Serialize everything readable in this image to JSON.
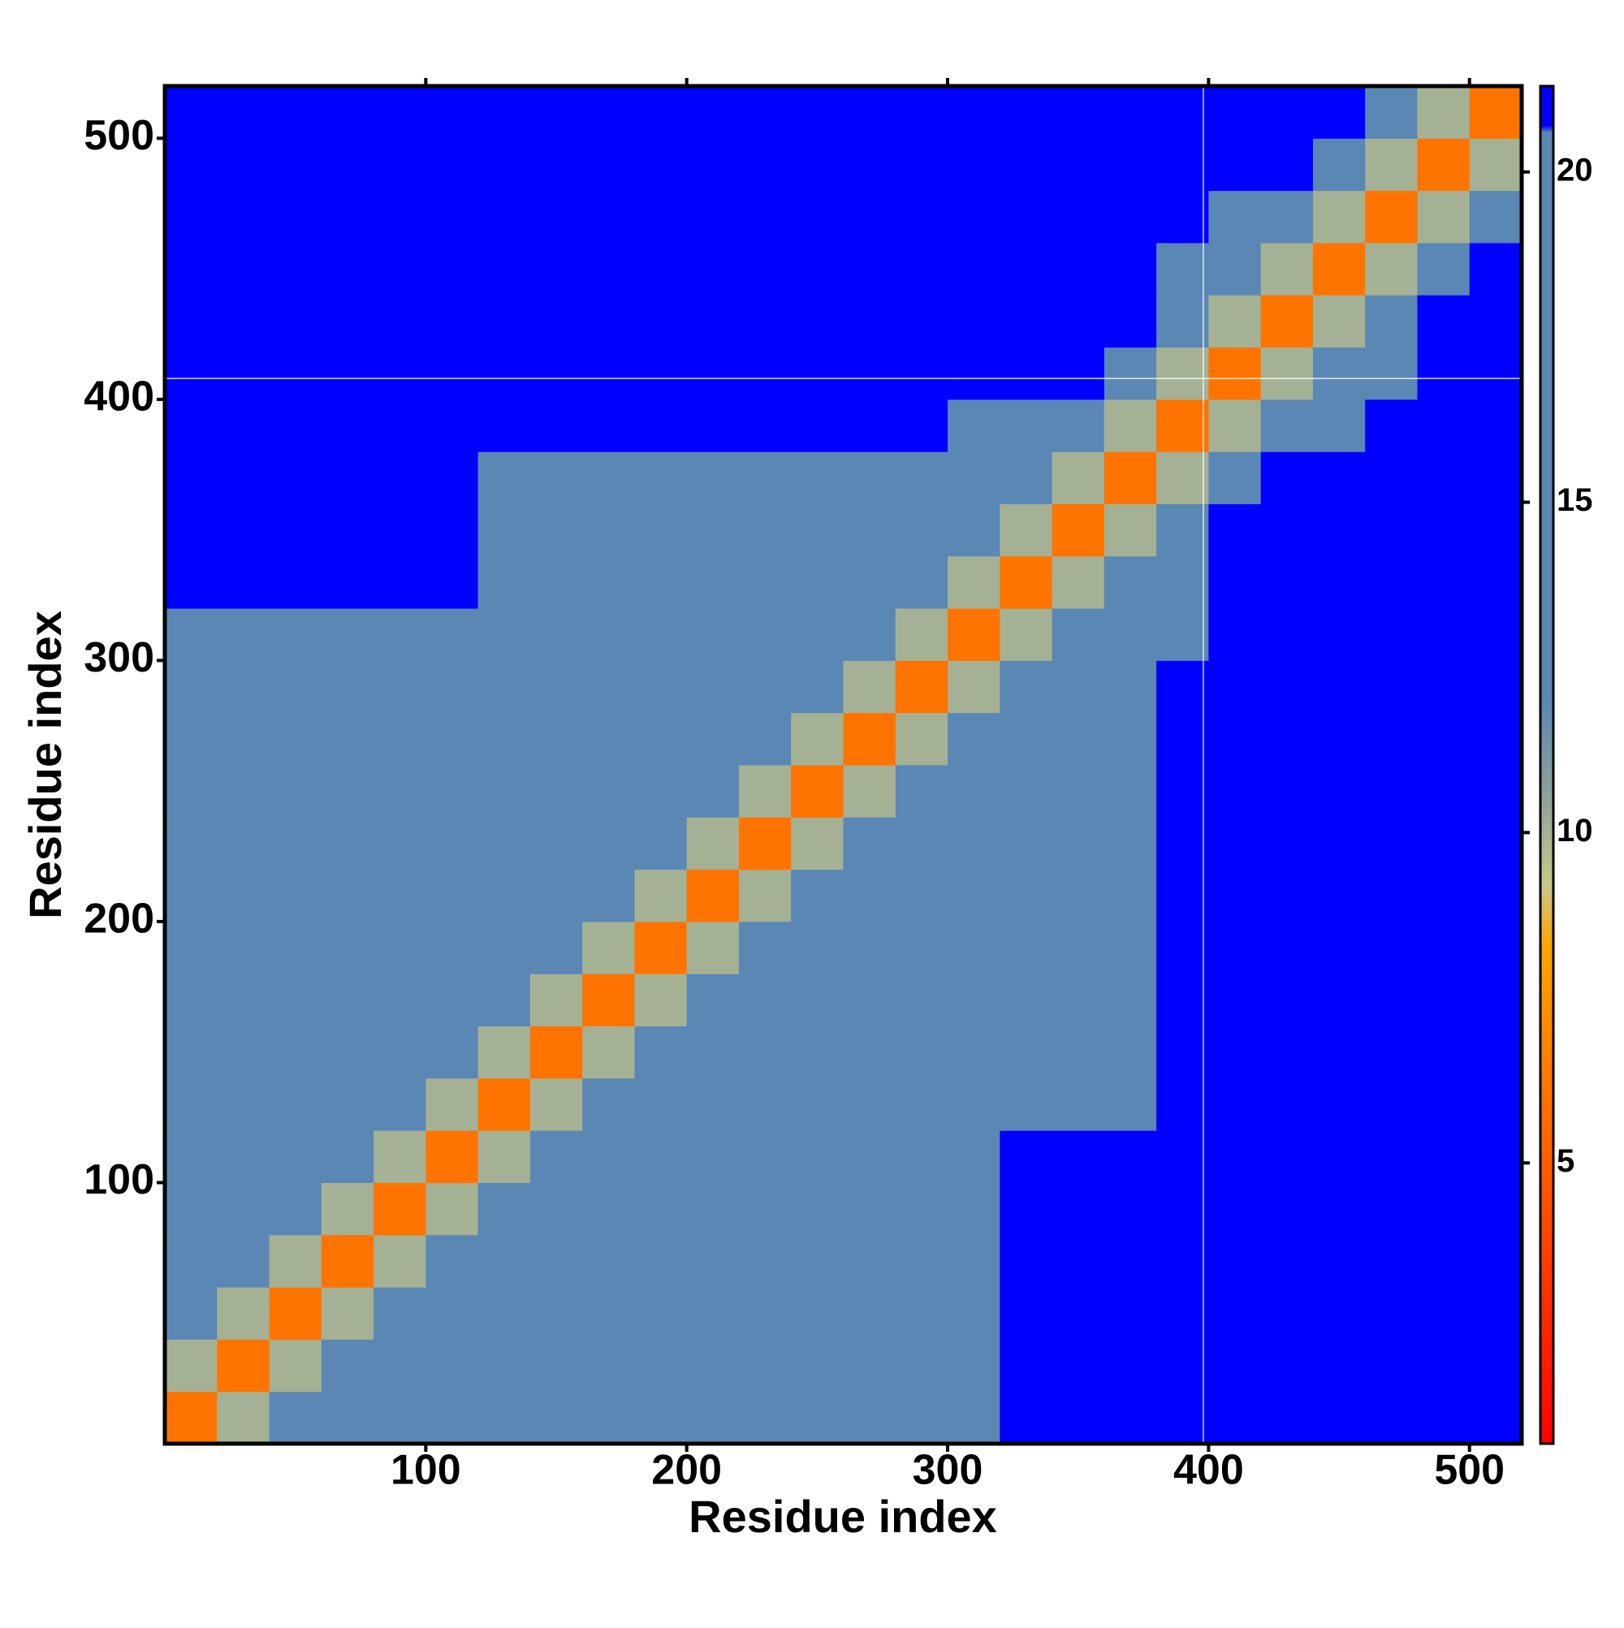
{
  "chart_data": {
    "type": "heatmap",
    "xlabel": "Residue index",
    "ylabel": "Residue index",
    "x_bins": [
      0,
      20,
      40,
      60,
      80,
      100,
      120,
      140,
      160,
      180,
      200,
      220,
      240,
      260,
      280,
      300,
      320,
      340,
      360,
      380,
      400,
      420,
      440,
      460,
      480,
      500,
      520
    ],
    "y_bins": [
      0,
      20,
      40,
      60,
      80,
      100,
      120,
      140,
      160,
      180,
      200,
      220,
      240,
      260,
      280,
      300,
      320,
      340,
      360,
      380,
      400,
      420,
      440,
      460,
      480,
      500,
      520
    ],
    "z": [
      [
        6,
        10,
        14,
        14,
        17,
        17,
        17,
        17,
        17,
        17,
        17,
        17,
        17,
        17,
        17,
        17,
        21,
        21,
        21,
        21,
        21,
        21,
        21,
        21,
        21,
        21
      ],
      [
        10,
        6,
        10,
        14,
        14,
        17,
        17,
        17,
        17,
        17,
        17,
        17,
        17,
        17,
        17,
        17,
        21,
        21,
        21,
        21,
        21,
        21,
        21,
        21,
        21,
        21
      ],
      [
        14,
        10,
        6,
        10,
        14,
        14,
        17,
        17,
        17,
        17,
        17,
        17,
        17,
        17,
        17,
        17,
        21,
        21,
        21,
        21,
        21,
        21,
        21,
        21,
        21,
        21
      ],
      [
        14,
        14,
        10,
        6,
        10,
        14,
        14,
        17,
        17,
        17,
        17,
        17,
        17,
        17,
        17,
        17,
        21,
        21,
        21,
        21,
        21,
        21,
        21,
        21,
        21,
        21
      ],
      [
        17,
        14,
        14,
        10,
        6,
        10,
        14,
        14,
        17,
        17,
        17,
        17,
        17,
        17,
        17,
        17,
        21,
        21,
        21,
        21,
        21,
        21,
        21,
        21,
        21,
        21
      ],
      [
        17,
        17,
        14,
        14,
        10,
        6,
        10,
        14,
        14,
        17,
        17,
        17,
        17,
        17,
        17,
        17,
        21,
        21,
        21,
        21,
        21,
        21,
        21,
        21,
        21,
        21
      ],
      [
        17,
        17,
        17,
        14,
        14,
        10,
        6,
        10,
        14,
        14,
        17,
        17,
        17,
        17,
        17,
        17,
        17,
        17,
        17,
        21,
        21,
        21,
        21,
        21,
        21,
        21
      ],
      [
        17,
        17,
        17,
        17,
        14,
        14,
        10,
        6,
        10,
        14,
        14,
        17,
        17,
        17,
        17,
        17,
        17,
        17,
        17,
        21,
        21,
        21,
        21,
        21,
        21,
        21
      ],
      [
        17,
        17,
        17,
        17,
        17,
        14,
        14,
        10,
        6,
        10,
        14,
        14,
        17,
        17,
        17,
        17,
        17,
        17,
        17,
        21,
        21,
        21,
        21,
        21,
        21,
        21
      ],
      [
        17,
        17,
        17,
        17,
        17,
        17,
        14,
        14,
        10,
        6,
        10,
        14,
        14,
        17,
        17,
        17,
        17,
        17,
        17,
        21,
        21,
        21,
        21,
        21,
        21,
        21
      ],
      [
        17,
        17,
        17,
        17,
        17,
        17,
        17,
        14,
        14,
        10,
        6,
        10,
        14,
        14,
        17,
        17,
        17,
        17,
        17,
        21,
        21,
        21,
        21,
        21,
        21,
        21
      ],
      [
        17,
        17,
        17,
        17,
        17,
        17,
        17,
        17,
        14,
        14,
        10,
        6,
        10,
        14,
        14,
        17,
        17,
        17,
        17,
        21,
        21,
        21,
        21,
        21,
        21,
        21
      ],
      [
        17,
        17,
        17,
        17,
        17,
        17,
        17,
        17,
        17,
        14,
        14,
        10,
        6,
        10,
        14,
        14,
        17,
        17,
        17,
        21,
        21,
        21,
        21,
        21,
        21,
        21
      ],
      [
        17,
        17,
        17,
        17,
        17,
        17,
        17,
        17,
        17,
        17,
        14,
        14,
        10,
        6,
        10,
        14,
        14,
        17,
        17,
        21,
        21,
        21,
        21,
        21,
        21,
        21
      ],
      [
        17,
        17,
        17,
        17,
        17,
        17,
        17,
        17,
        17,
        17,
        17,
        14,
        14,
        10,
        6,
        10,
        14,
        14,
        17,
        21,
        21,
        21,
        21,
        21,
        21,
        21
      ],
      [
        17,
        17,
        17,
        17,
        17,
        17,
        17,
        17,
        17,
        17,
        17,
        17,
        14,
        14,
        10,
        6,
        10,
        14,
        14,
        19,
        21,
        21,
        21,
        21,
        21,
        21
      ],
      [
        21,
        21,
        21,
        21,
        21,
        21,
        17,
        17,
        17,
        17,
        17,
        17,
        17,
        14,
        14,
        10,
        6,
        10,
        14,
        19,
        21,
        21,
        21,
        21,
        21,
        21
      ],
      [
        21,
        21,
        21,
        21,
        21,
        21,
        17,
        17,
        17,
        17,
        17,
        17,
        17,
        17,
        14,
        14,
        10,
        6,
        10,
        14,
        21,
        21,
        21,
        21,
        21,
        21
      ],
      [
        21,
        21,
        21,
        21,
        21,
        21,
        17,
        17,
        17,
        17,
        17,
        17,
        17,
        17,
        17,
        14,
        14,
        10,
        6,
        10,
        14,
        21,
        21,
        21,
        21,
        21
      ],
      [
        21,
        21,
        21,
        21,
        21,
        21,
        21,
        21,
        21,
        21,
        21,
        21,
        21,
        21,
        21,
        19,
        19,
        14,
        10,
        6,
        10,
        14,
        14,
        21,
        21,
        21
      ],
      [
        21,
        21,
        21,
        21,
        21,
        21,
        21,
        21,
        21,
        21,
        21,
        21,
        21,
        21,
        21,
        21,
        21,
        21,
        14,
        10,
        6,
        10,
        14,
        17,
        21,
        21
      ],
      [
        21,
        21,
        21,
        21,
        21,
        21,
        21,
        21,
        21,
        21,
        21,
        21,
        21,
        21,
        21,
        21,
        21,
        21,
        21,
        14,
        10,
        6,
        10,
        14,
        21,
        21
      ],
      [
        21,
        21,
        21,
        21,
        21,
        21,
        21,
        21,
        21,
        21,
        21,
        21,
        21,
        21,
        21,
        21,
        21,
        21,
        21,
        14,
        14,
        10,
        6,
        10,
        14,
        21
      ],
      [
        21,
        21,
        21,
        21,
        21,
        21,
        21,
        21,
        21,
        21,
        21,
        21,
        21,
        21,
        21,
        21,
        21,
        21,
        21,
        21,
        17,
        14,
        10,
        6,
        10,
        14
      ],
      [
        21,
        21,
        21,
        21,
        21,
        21,
        21,
        21,
        21,
        21,
        21,
        21,
        21,
        21,
        21,
        21,
        21,
        21,
        21,
        21,
        21,
        21,
        14,
        10,
        6,
        10
      ],
      [
        21,
        21,
        21,
        21,
        21,
        21,
        21,
        21,
        21,
        21,
        21,
        21,
        21,
        21,
        21,
        21,
        21,
        21,
        21,
        21,
        21,
        21,
        21,
        14,
        10,
        6
      ]
    ],
    "xlim": [
      0,
      520
    ],
    "ylim": [
      0,
      520
    ],
    "xticks": [
      100,
      200,
      300,
      400,
      500
    ],
    "yticks": [
      100,
      200,
      300,
      400,
      500
    ],
    "vlines": [
      398
    ],
    "hlines": [
      408
    ],
    "colorbar": {
      "lim": [
        0.75,
        21.3
      ],
      "ticks": [
        5,
        10,
        15,
        20
      ],
      "colorscale": [
        [
          0.75,
          "#ff0000"
        ],
        [
          8.3,
          "#ffa500"
        ],
        [
          9.2,
          "#c8c88a"
        ],
        [
          10.5,
          "#8fa39a"
        ],
        [
          12,
          "#5b87b5"
        ],
        [
          20.6,
          "#5b87b5"
        ],
        [
          20.7,
          "#0000ff"
        ],
        [
          21.3,
          "#0000ff"
        ]
      ]
    }
  }
}
